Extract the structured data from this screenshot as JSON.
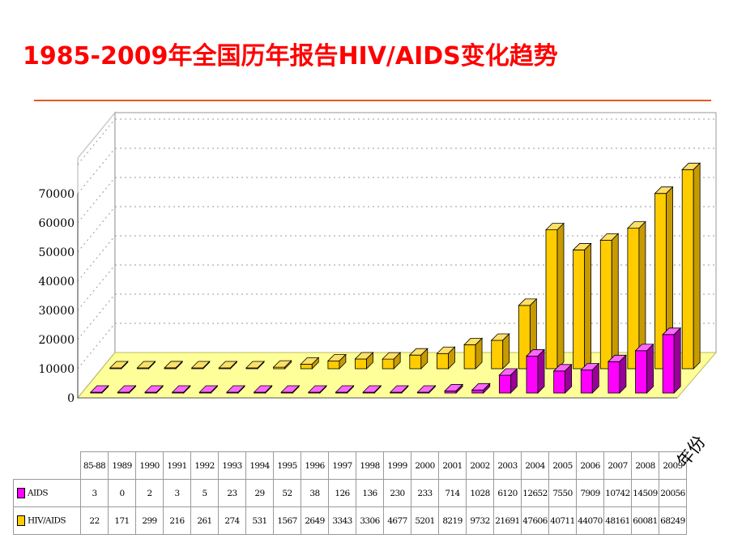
{
  "slide": {
    "title": "1985-2009年全国历年报告HIV/AIDS变化趋势",
    "axis_unit_label": "年份"
  },
  "colors": {
    "title": "#ff0000",
    "title_rule": "#e25a22",
    "aids_series": "#ff00ff",
    "hiv_aids_series": "#ffcc00",
    "floor": "#ffff99"
  },
  "chart_data": {
    "type": "bar",
    "title": "",
    "xlabel": "年份",
    "ylabel": "",
    "ylim": [
      0,
      70000
    ],
    "yticks": [
      "0",
      "10000",
      "20000",
      "30000",
      "40000",
      "50000",
      "60000",
      "70000"
    ],
    "grid": true,
    "categories": [
      "85-88",
      "1989",
      "1990",
      "1991",
      "1992",
      "1993",
      "1994",
      "1995",
      "1996",
      "1997",
      "1998",
      "1999",
      "2000",
      "2001",
      "2002",
      "2003",
      "2004",
      "2005",
      "2006",
      "2007",
      "2008",
      "2009"
    ],
    "series": [
      {
        "name": "AIDS",
        "color": "#ff00ff",
        "values": [
          3,
          0,
          2,
          3,
          5,
          23,
          29,
          52,
          38,
          126,
          136,
          230,
          233,
          714,
          1028,
          6120,
          12652,
          7550,
          7909,
          10742,
          14509,
          20056
        ]
      },
      {
        "name": "HIV/AIDS",
        "color": "#ffcc00",
        "values": [
          22,
          171,
          299,
          216,
          261,
          274,
          531,
          1567,
          2649,
          3343,
          3306,
          4677,
          5201,
          8219,
          9732,
          21691,
          47606,
          40711,
          44070,
          48161,
          60081,
          68249
        ]
      }
    ]
  }
}
